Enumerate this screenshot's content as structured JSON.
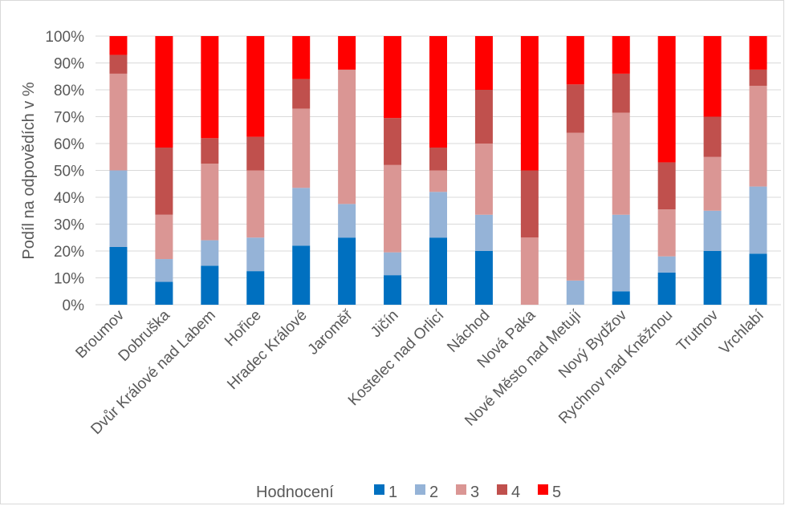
{
  "chart_data": {
    "type": "bar",
    "stacked": true,
    "percent_stacked": true,
    "title": "",
    "xlabel": "",
    "ylabel": "Podíl na odpovědích v %",
    "ylim": [
      0,
      100
    ],
    "yticks": [
      "0%",
      "10%",
      "20%",
      "30%",
      "40%",
      "50%",
      "60%",
      "70%",
      "80%",
      "90%",
      "100%"
    ],
    "grid": true,
    "legend_title": "Hodnocení",
    "legend_position": "bottom",
    "categories": [
      "Broumov",
      "Dobruška",
      "Dvůr Králové nad Labem",
      "Hořice",
      "Hradec Králové",
      "Jaroměř",
      "Jičín",
      "Kostelec nad Orlicí",
      "Náchod",
      "Nová Paka",
      "Nové Město nad Metují",
      "Nový Bydžov",
      "Rychnov nad Kněžnou",
      "Trutnov",
      "Vrchlabí"
    ],
    "series": [
      {
        "name": "1",
        "color": "#0070c0",
        "values": [
          21.5,
          8.5,
          14.5,
          12.5,
          22,
          25,
          11,
          25,
          20,
          0,
          0,
          5,
          12,
          20,
          19
        ]
      },
      {
        "name": "2",
        "color": "#95b3d7",
        "values": [
          28.5,
          8.5,
          9.5,
          12.5,
          21.5,
          12.5,
          8.5,
          17,
          13.5,
          0,
          9,
          28.5,
          6,
          15,
          25
        ]
      },
      {
        "name": "3",
        "color": "#da9694",
        "values": [
          36,
          16.5,
          28.5,
          25,
          29.5,
          50,
          32.5,
          8,
          26.5,
          25,
          55,
          38,
          17.5,
          20,
          37.5
        ]
      },
      {
        "name": "4",
        "color": "#c0504d",
        "values": [
          7,
          25,
          9.5,
          12.5,
          11,
          0,
          17.5,
          8.5,
          20,
          25,
          18,
          14.5,
          17.5,
          15,
          6
        ]
      },
      {
        "name": "5",
        "color": "#ff0000",
        "values": [
          7,
          41.5,
          38,
          37.5,
          16,
          12.5,
          30.5,
          41.5,
          20,
          50,
          18,
          14,
          47,
          30,
          12.5
        ]
      }
    ]
  }
}
